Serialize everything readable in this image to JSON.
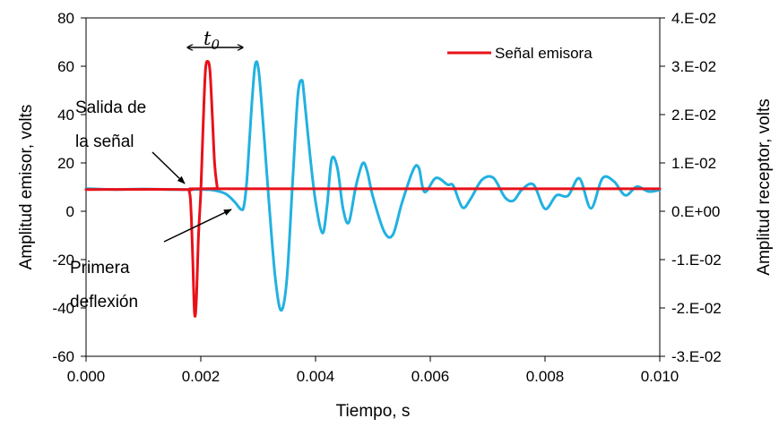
{
  "chart_data": {
    "type": "line",
    "xlabel": "Tiempo, s",
    "ylabel_left": "Amplitud emisor, volts",
    "ylabel_right": "Amplitud receptor, volts",
    "xlim": [
      0,
      0.01
    ],
    "ylim_left": [
      -60,
      80
    ],
    "ylim_right": [
      -0.03,
      0.04
    ],
    "x_ticks": [
      "0.000",
      "0.002",
      "0.004",
      "0.006",
      "0.008",
      "0.010"
    ],
    "y_left_ticks": [
      "80",
      "60",
      "40",
      "20",
      "0",
      "-20",
      "-40",
      "-60"
    ],
    "y_right_ticks": [
      "4.E-02",
      "3.E-02",
      "2.E-02",
      "1.E-02",
      "0.E+00",
      "-1.E-02",
      "-2.E-02",
      "-3.E-02"
    ],
    "grid": false,
    "legend_position": "top-right",
    "series": [
      {
        "name": "Señal emisora",
        "axis": "left",
        "color": "#e8111a",
        "x": [
          0,
          0.0017,
          0.0018,
          0.00183,
          0.00186,
          0.00189,
          0.00192,
          0.00196,
          0.002,
          0.00204,
          0.00208,
          0.00212,
          0.00216,
          0.0022,
          0.00224,
          0.00228,
          0.0023,
          0.0024,
          0.01
        ],
        "y": [
          9,
          9,
          8,
          0,
          -20,
          -42,
          -38,
          -10,
          8,
          35,
          58,
          62,
          58,
          40,
          20,
          11,
          9.5,
          9.3,
          9.3
        ]
      },
      {
        "name": "Amplitud receptor",
        "axis": "right",
        "color": "#21b1e1",
        "x": [
          0,
          0.0005,
          0.001,
          0.0015,
          0.0018,
          0.002,
          0.0022,
          0.0024,
          0.0025,
          0.0026,
          0.0027,
          0.00275,
          0.0028,
          0.00285,
          0.0029,
          0.00295,
          0.00301,
          0.0031,
          0.0032,
          0.0033,
          0.0034,
          0.0035,
          0.0036,
          0.00369,
          0.00376,
          0.0038,
          0.0039,
          0.004,
          0.00412,
          0.0042,
          0.00428,
          0.00438,
          0.00448,
          0.00458,
          0.0047,
          0.00482,
          0.0049,
          0.005,
          0.0052,
          0.00535,
          0.0055,
          0.0057,
          0.0058,
          0.0059,
          0.0061,
          0.0063,
          0.0064,
          0.00656,
          0.0067,
          0.0069,
          0.0071,
          0.0073,
          0.00745,
          0.0076,
          0.0078,
          0.008,
          0.0082,
          0.0084,
          0.0086,
          0.0088,
          0.009,
          0.0092,
          0.0094,
          0.0096,
          0.0098,
          0.01
        ],
        "y": [
          0.0047,
          0.0045,
          0.0046,
          0.0045,
          0.0045,
          0.0045,
          0.0044,
          0.0038,
          0.003,
          0.0018,
          0.0004,
          0.001,
          0.006,
          0.015,
          0.024,
          0.0304,
          0.029,
          0.016,
          0.0,
          -0.014,
          -0.0205,
          -0.014,
          0.006,
          0.0238,
          0.0271,
          0.024,
          0.012,
          0.002,
          -0.0045,
          0.001,
          0.0107,
          0.009,
          0.0005,
          -0.0023,
          0.005,
          0.0099,
          0.0083,
          0.003,
          -0.0043,
          -0.0048,
          0.0015,
          0.0085,
          0.009,
          0.004,
          0.0069,
          0.0055,
          0.0053,
          0.0008,
          0.0025,
          0.0065,
          0.0069,
          0.0029,
          0.0022,
          0.0045,
          0.0055,
          0.0005,
          0.0033,
          0.0032,
          0.0068,
          0.0006,
          0.0068,
          0.0062,
          0.0033,
          0.0051,
          0.0041,
          0.0044
        ]
      }
    ],
    "annotations": {
      "t0_label": "t",
      "t0_sub": "0",
      "salida_line1": "Salida de",
      "salida_line2": "la señal",
      "primera_line1": "Primera",
      "primera_line2": "deflexión"
    }
  }
}
